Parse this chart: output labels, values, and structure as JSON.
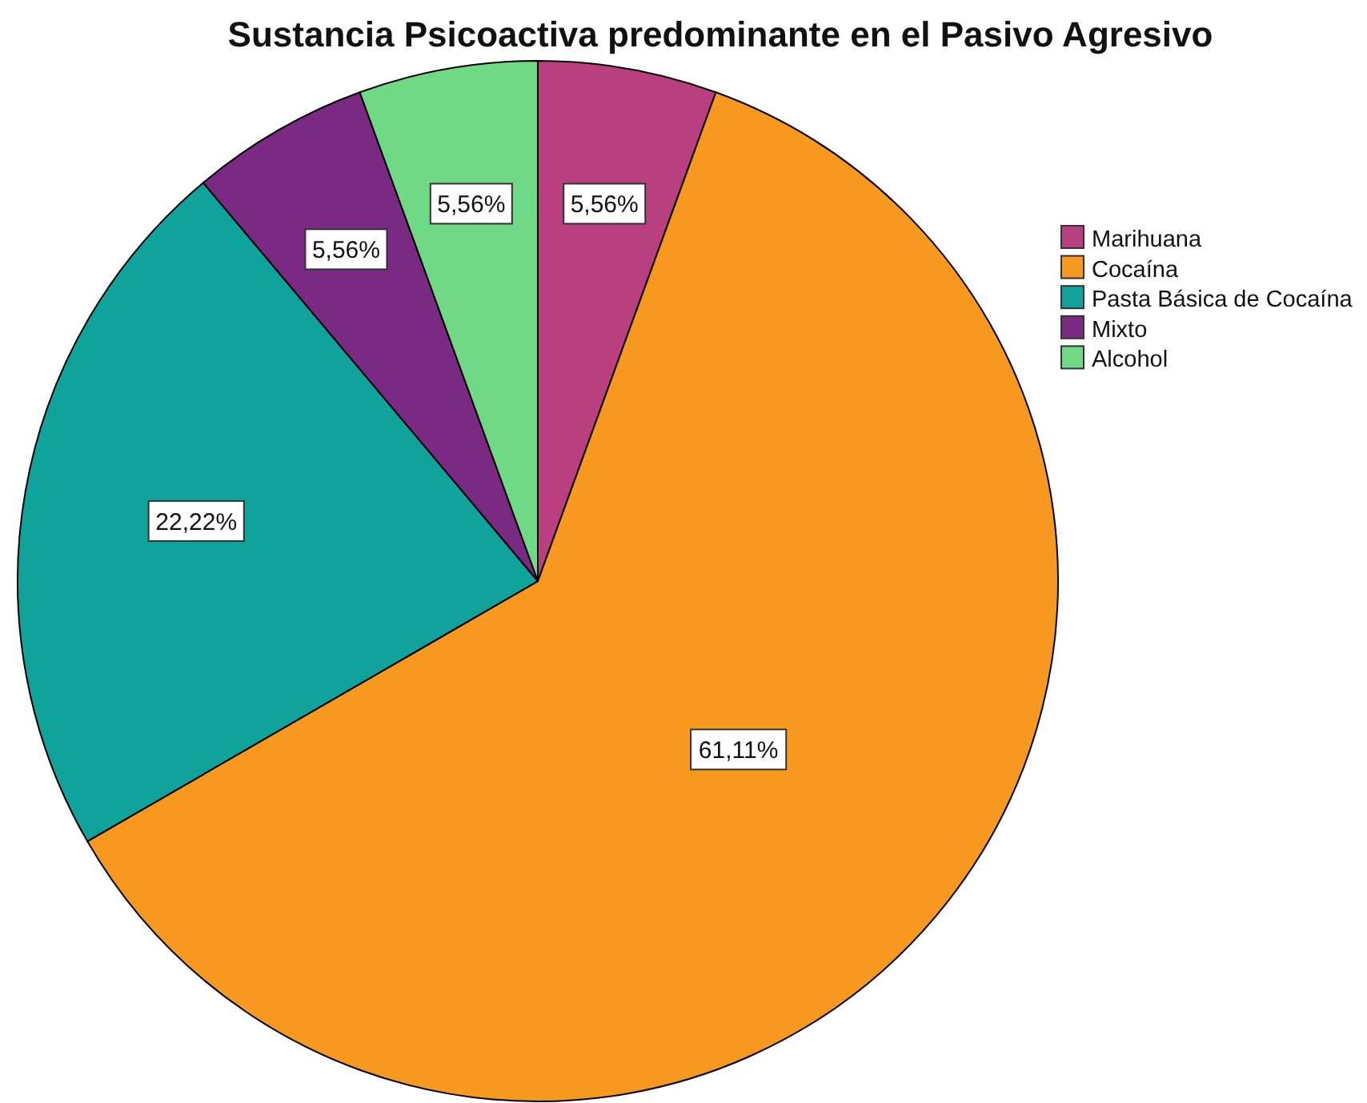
{
  "chart_data": {
    "type": "pie",
    "title": "Sustancia Psicoactiva predominante en el Pasivo Agresivo",
    "categories": [
      "Marihuana",
      "Cocaína",
      "Pasta Básica de Cocaína",
      "Mixto",
      "Alcohol"
    ],
    "values": [
      5.56,
      61.11,
      22.22,
      5.56,
      5.56
    ],
    "value_labels": [
      "5,56%",
      "61,11%",
      "22,22%",
      "5,56%",
      "5,56%"
    ],
    "colors": [
      "#b93f80",
      "#f7991f",
      "#10a39c",
      "#7b2a83",
      "#6fd985"
    ],
    "legend": "top right"
  }
}
